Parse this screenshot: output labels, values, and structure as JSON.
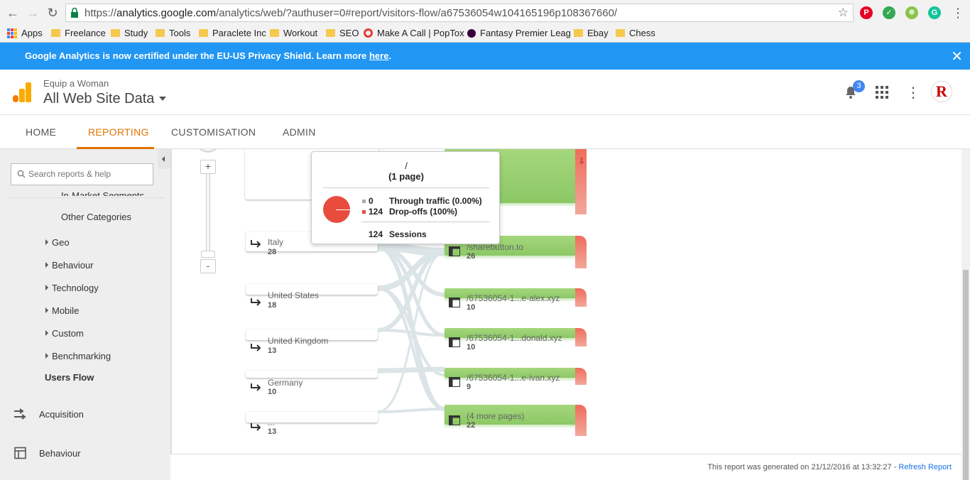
{
  "browser": {
    "url_scheme": "https://",
    "url_host": "analytics.google.com",
    "url_path": "/analytics/web/?authuser=0#report/visitors-flow/a67536054w104165196p108367660/",
    "bookmarks": [
      "Apps",
      "Freelance",
      "Study",
      "Tools",
      "Paraclete Inc",
      "Workout",
      "SEO",
      "Make A Call | PopTox",
      "Fantasy Premier Leag",
      "Ebay",
      "Chess"
    ]
  },
  "banner": {
    "text": "Google Analytics is now certified under the EU-US Privacy Shield. Learn more ",
    "link": "here",
    "suffix": "."
  },
  "header": {
    "account": "Equip a Woman",
    "property": "All Web Site Data",
    "notifications": "3",
    "avatar_letter": "R"
  },
  "tabs": [
    "HOME",
    "REPORTING",
    "CUSTOMISATION",
    "ADMIN"
  ],
  "sidebar": {
    "search_placeholder": "Search reports & help",
    "cutoff_item": "In-Market Segments",
    "other_categories": "Other Categories",
    "items": [
      "Geo",
      "Behaviour",
      "Technology",
      "Mobile",
      "Custom",
      "Benchmarking"
    ],
    "active": "Users Flow",
    "sections": [
      "Acquisition",
      "Behaviour"
    ]
  },
  "zoom": {
    "plus": "+",
    "minus": "-"
  },
  "sources": [
    {
      "label": "Italy",
      "count": "28"
    },
    {
      "label": "United States",
      "count": "18"
    },
    {
      "label": "United Kingdom",
      "count": "13"
    },
    {
      "label": "Germany",
      "count": "10"
    },
    {
      "label": "...",
      "count": "13"
    }
  ],
  "pages": [
    {
      "label": "/sharebutton.to",
      "count": "26"
    },
    {
      "label": "/67536054-1...e-alex.xyz",
      "count": "10"
    },
    {
      "label": "/67536054-1...donald.xyz",
      "count": "10"
    },
    {
      "label": "/67536054-1...e-ivan.xyz",
      "count": "9"
    },
    {
      "label": "(4 more pages)",
      "count": "22"
    }
  ],
  "tooltip": {
    "title": "/",
    "subtitle": "(1 page)",
    "through_value": "0",
    "through_label": "Through traffic (0.00%)",
    "drop_value": "124",
    "drop_label": "Drop-offs (100%)",
    "sessions_value": "124",
    "sessions_label": "Sessions"
  },
  "footer": {
    "text": "This report was generated on 21/12/2016 at 13:32:27 - ",
    "link": "Refresh Report"
  },
  "colors": {
    "banner": "#2196f3",
    "accent": "#e37400",
    "green": "#8cc866",
    "red": "#e84c3d"
  }
}
